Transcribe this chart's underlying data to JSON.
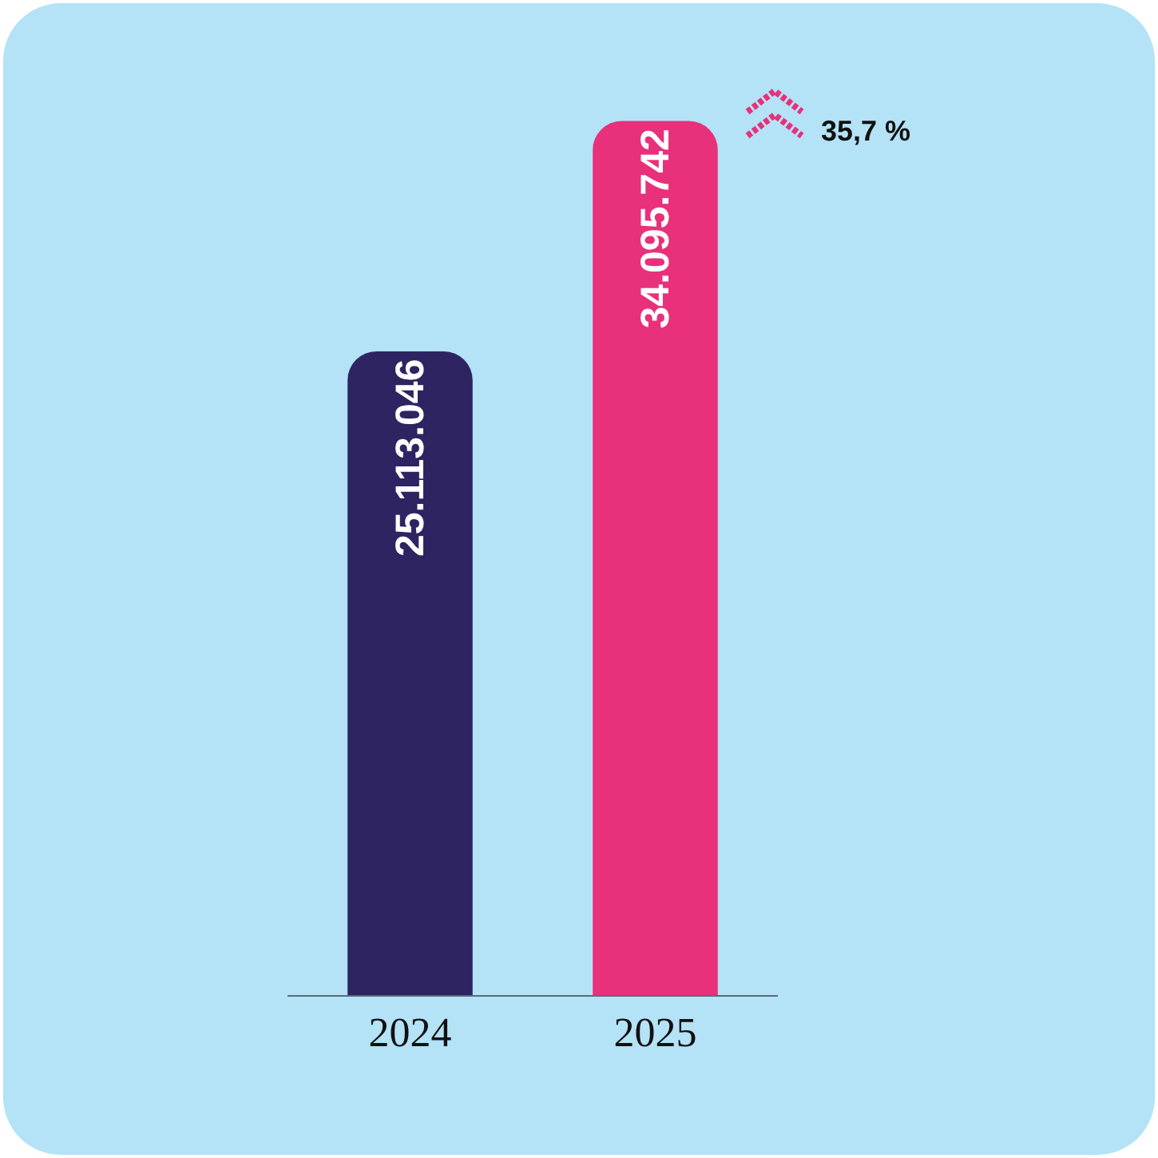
{
  "chart_data": {
    "type": "bar",
    "categories": [
      "2024",
      "2025"
    ],
    "values": [
      25113046,
      34095742
    ],
    "colors": [
      "#2e2462",
      "#e8317a"
    ],
    "value_labels": [
      "25.113.046",
      "34.095.742"
    ],
    "annotations": [
      "35,7 %"
    ]
  }
}
